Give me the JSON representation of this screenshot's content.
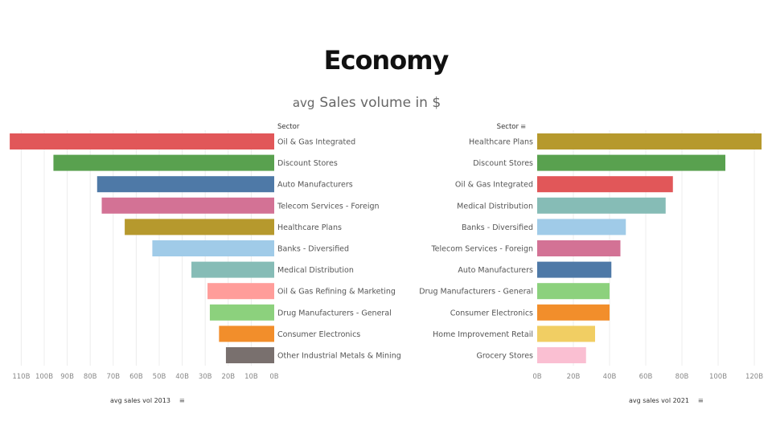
{
  "page_title": "Economy",
  "subtitle": {
    "aggregation": "avg",
    "measure": "Sales volume in $"
  },
  "chart_data": [
    {
      "type": "bar",
      "orientation": "horizontal",
      "axis_direction": "reversed",
      "dimension_label": "Sector",
      "xlabel": "avg sales vol 2013",
      "xlim": [
        0,
        115
      ],
      "tick_values": [
        0,
        10,
        20,
        30,
        40,
        50,
        60,
        70,
        80,
        90,
        100,
        110
      ],
      "tick_labels": [
        "0B",
        "10B",
        "20B",
        "30B",
        "40B",
        "50B",
        "60B",
        "70B",
        "80B",
        "90B",
        "100B",
        "110B"
      ],
      "categories": [
        "Oil & Gas Integrated",
        "Discount Stores",
        "Auto Manufacturers",
        "Telecom Services - Foreign",
        "Healthcare Plans",
        "Banks - Diversified",
        "Medical Distribution",
        "Oil & Gas Refining & Marketing",
        "Drug Manufacturers - General",
        "Consumer Electronics",
        "Other Industrial Metals & Mining"
      ],
      "values": [
        115,
        96,
        77,
        75,
        65,
        53,
        36,
        29,
        28,
        24,
        21
      ],
      "colors": [
        "#e15759",
        "#59a14f",
        "#4e79a7",
        "#d37295",
        "#b6992d",
        "#a0cbe8",
        "#86bcb6",
        "#ff9d9a",
        "#8cd17d",
        "#f28e2b",
        "#79706e"
      ]
    },
    {
      "type": "bar",
      "orientation": "horizontal",
      "dimension_label": "Sector",
      "xlabel": "avg sales vol 2021",
      "xlim": [
        0,
        122
      ],
      "tick_values": [
        0,
        20,
        40,
        60,
        80,
        100,
        120
      ],
      "tick_labels": [
        "0B",
        "20B",
        "40B",
        "60B",
        "80B",
        "100B",
        "120B"
      ],
      "categories": [
        "Healthcare Plans",
        "Discount Stores",
        "Oil & Gas Integrated",
        "Medical Distribution",
        "Banks - Diversified",
        "Telecom Services - Foreign",
        "Auto Manufacturers",
        "Drug Manufacturers - General",
        "Consumer Electronics",
        "Home Improvement Retail",
        "Grocery Stores"
      ],
      "values": [
        124,
        104,
        75,
        71,
        49,
        46,
        41,
        40,
        40,
        32,
        27
      ],
      "colors": [
        "#b6992d",
        "#59a14f",
        "#e15759",
        "#86bcb6",
        "#a0cbe8",
        "#d37295",
        "#4e79a7",
        "#8cd17d",
        "#f28e2b",
        "#f1ce63",
        "#fabfd2"
      ]
    }
  ]
}
